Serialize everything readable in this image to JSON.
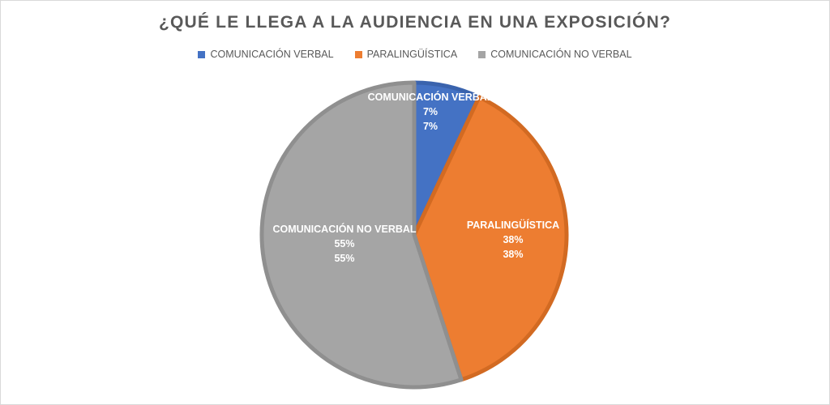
{
  "chart_data": {
    "type": "pie",
    "title": "¿QUÉ LE LLEGA A LA AUDIENCIA EN UNA EXPOSICIÓN?",
    "legend_position": "top",
    "categories": [
      "COMUNICACIÓN VERBAL",
      "PARALINGÜÍSTICA",
      "COMUNICACIÓN NO VERBAL"
    ],
    "values": [
      7,
      38,
      55
    ],
    "value_labels": [
      "7%",
      "38%",
      "55%"
    ],
    "percent_labels": [
      "7%",
      "38%",
      "55%"
    ],
    "colors": [
      "#4472C4",
      "#ED7D31",
      "#A5A5A5"
    ],
    "edge_colors": [
      "#3A63AD",
      "#D26A22",
      "#8F8F8F"
    ]
  }
}
